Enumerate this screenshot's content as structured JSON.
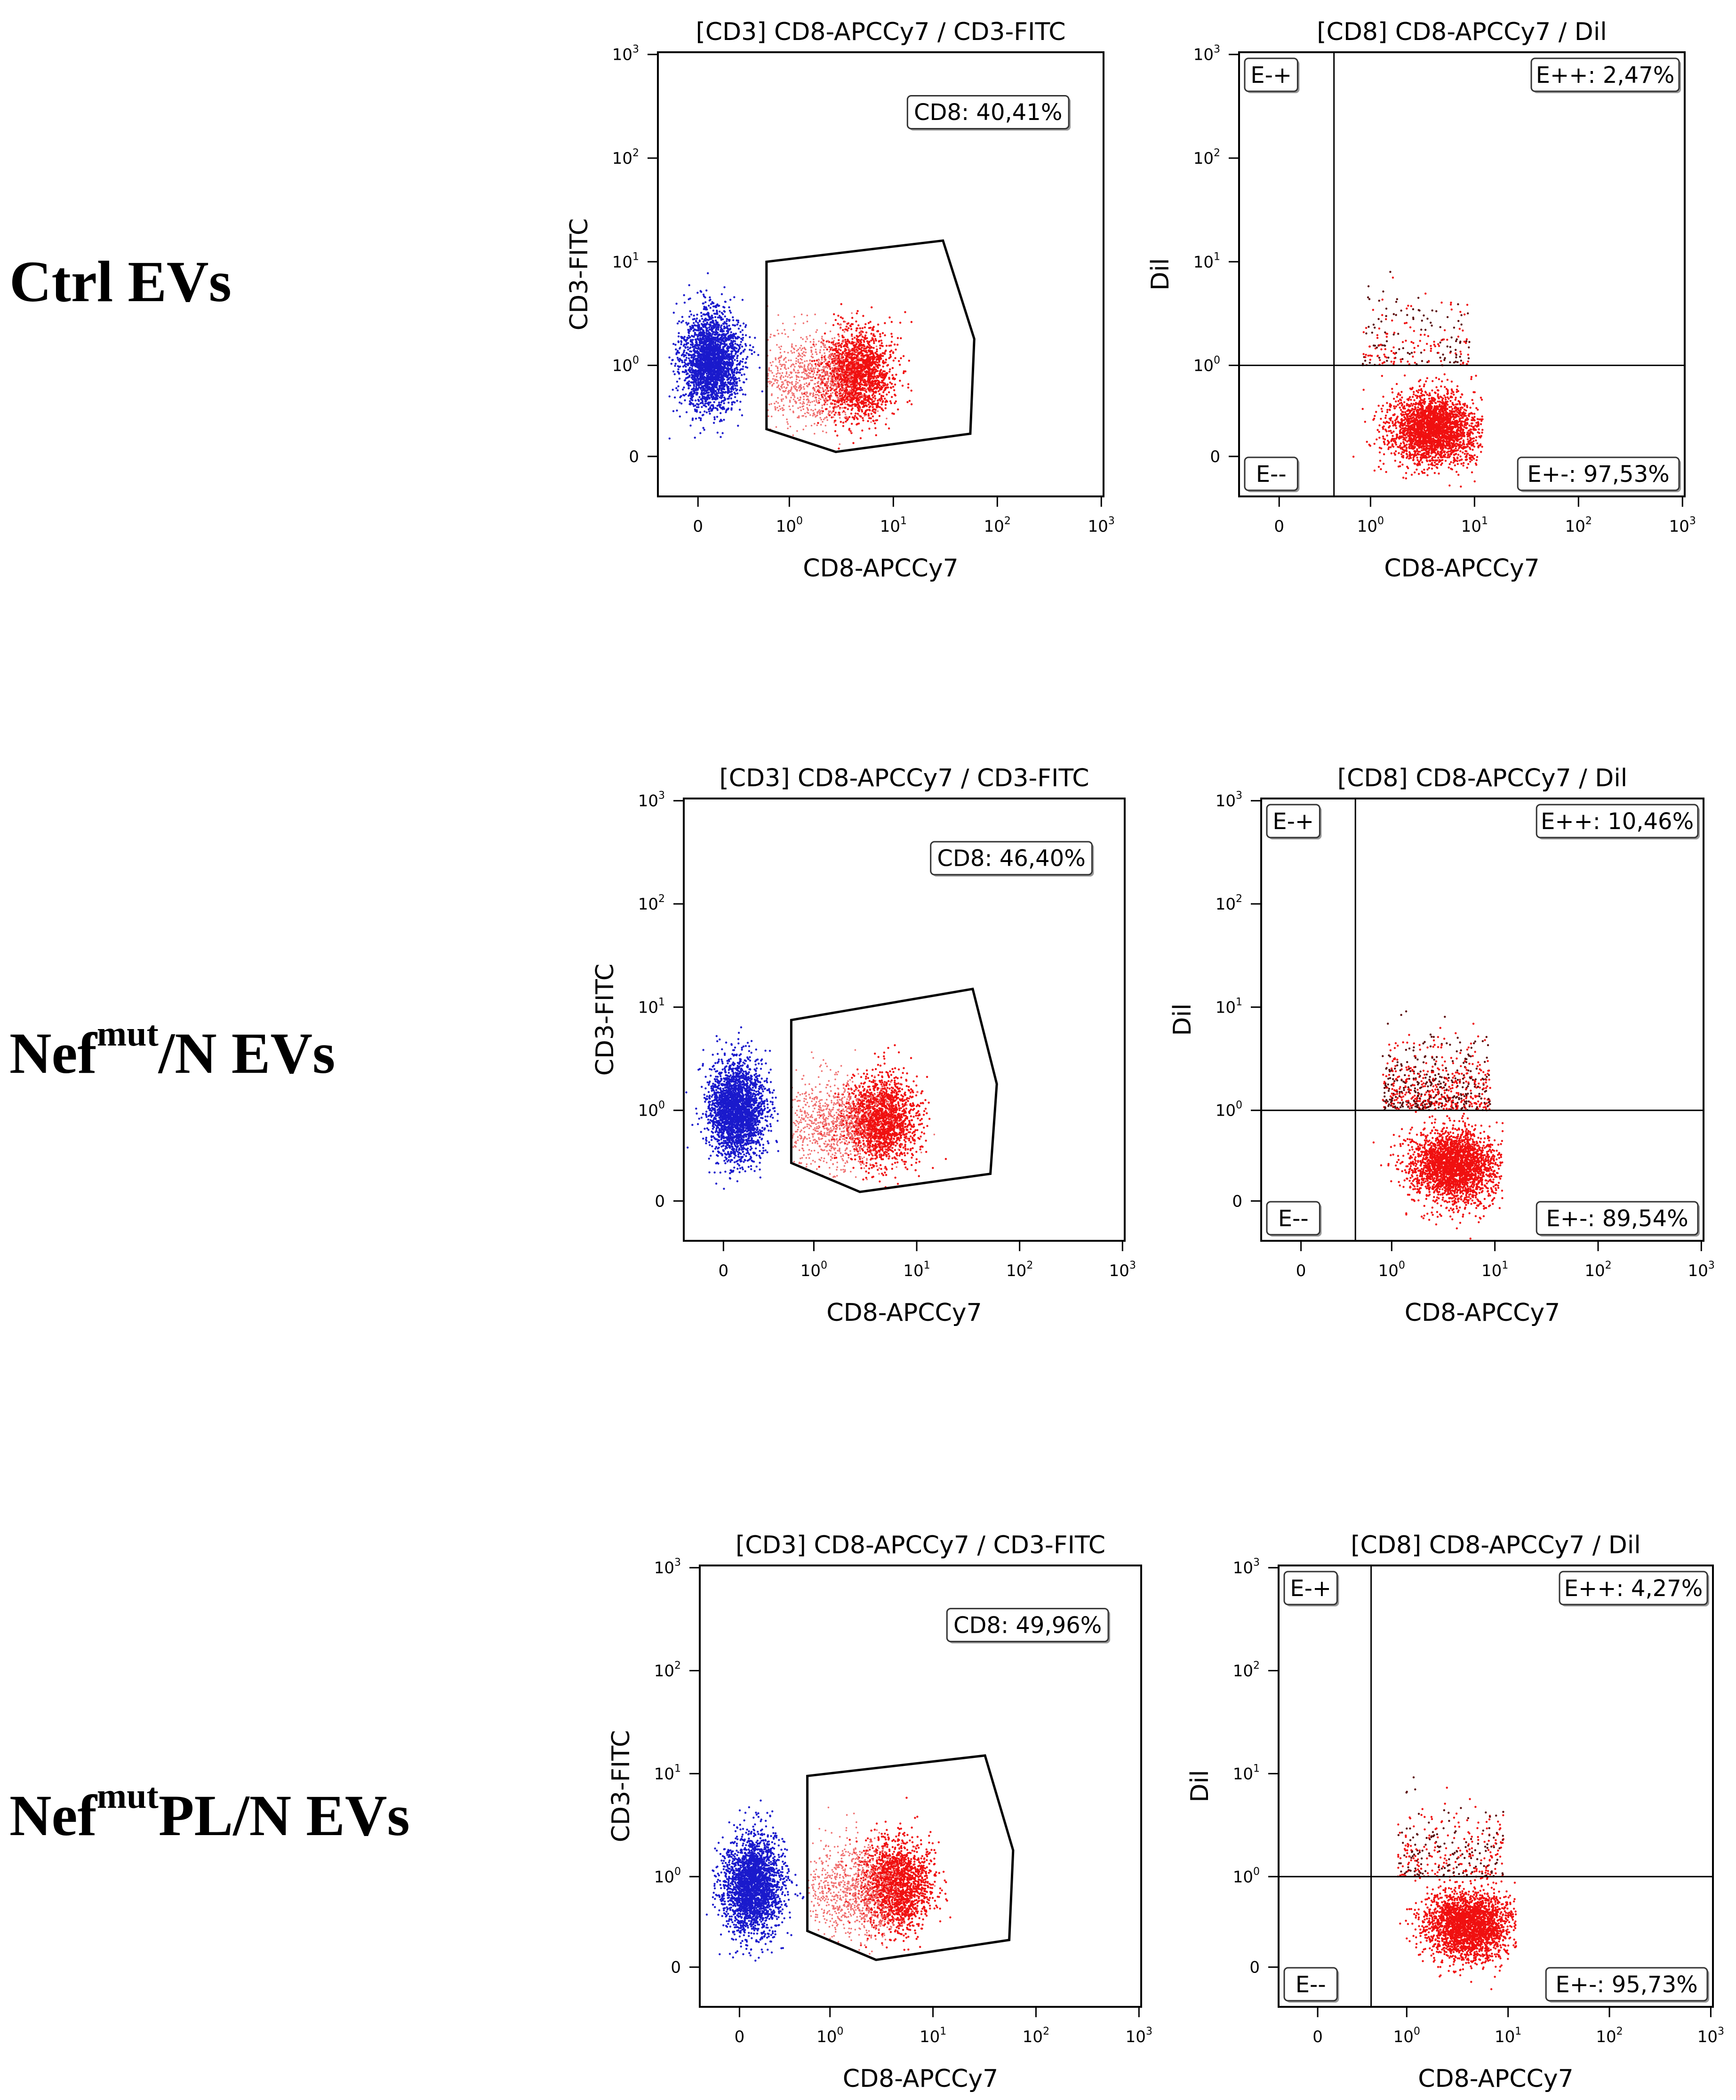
{
  "rows": [
    {
      "label": {
        "main": "Ctrl EVs",
        "sup": "",
        "tail": ""
      },
      "cd3_plot": {
        "title": "[CD3] CD8-APCCy7 / CD3-FITC",
        "xlabel": "CD8-APCCy7",
        "ylabel": "CD3-FITC",
        "gate_label": "CD8: 40,41%",
        "gate_polygon": [
          [
            0.75,
            10
          ],
          [
            30,
            16
          ],
          [
            60,
            1.8
          ],
          [
            55,
            0.25
          ],
          [
            2.8,
            0.05
          ],
          [
            0.75,
            0.3
          ]
        ]
      },
      "dil_plot": {
        "title": "[CD8] CD8-APCCy7 / Dil",
        "xlabel": "CD8-APCCy7",
        "ylabel": "Dil",
        "x_threshold": 0.6,
        "y_threshold": 1.0,
        "quadrants": {
          "ul": "E-+",
          "ur": "E++: 2,47%",
          "ll": "E--",
          "lr": "E+-: 97,53%"
        }
      }
    },
    {
      "label": {
        "main": "Nef",
        "sup": "mut",
        "tail": "/N EVs"
      },
      "cd3_plot": {
        "title": "[CD3] CD8-APCCy7 / CD3-FITC",
        "xlabel": "CD8-APCCy7",
        "ylabel": "CD3-FITC",
        "gate_label": "CD8: 46,40%",
        "gate_polygon": [
          [
            0.75,
            7.5
          ],
          [
            35,
            15
          ],
          [
            60,
            1.8
          ],
          [
            52,
            0.3
          ],
          [
            2.8,
            0.1
          ],
          [
            0.75,
            0.42
          ]
        ]
      },
      "dil_plot": {
        "title": "[CD8] CD8-APCCy7 / Dil",
        "xlabel": "CD8-APCCy7",
        "ylabel": "Dil",
        "x_threshold": 0.6,
        "y_threshold": 1.0,
        "quadrants": {
          "ul": "E-+",
          "ur": "E++: 10,46%",
          "ll": "E--",
          "lr": "E+-: 89,54%"
        }
      }
    },
    {
      "label": {
        "main": "Nef",
        "sup": "mut",
        "tail": "PL/N EVs"
      },
      "cd3_plot": {
        "title": "[CD3] CD8-APCCy7 / CD3-FITC",
        "xlabel": "CD8-APCCy7",
        "ylabel": "CD3-FITC",
        "gate_label": "CD8: 49,96%",
        "gate_polygon": [
          [
            0.75,
            9.5
          ],
          [
            32,
            15
          ],
          [
            60,
            1.8
          ],
          [
            55,
            0.3
          ],
          [
            2.8,
            0.08
          ],
          [
            0.75,
            0.4
          ]
        ]
      },
      "dil_plot": {
        "title": "[CD8] CD8-APCCy7 / Dil",
        "xlabel": "CD8-APCCy7",
        "ylabel": "Dil",
        "x_threshold": 0.6,
        "y_threshold": 1.0,
        "quadrants": {
          "ul": "E-+",
          "ur": "E++: 4,27%",
          "ll": "E--",
          "lr": "E+-: 95,73%"
        }
      }
    }
  ],
  "colors": {
    "cd8_negative": "#1a1acc",
    "cd8_positive": "#f01010",
    "dil_positive": "#5a0a0a",
    "axes": "#000000"
  },
  "chart_data": [
    {
      "type": "scatter",
      "title": "[CD3] CD8-APCCy7 / CD3-FITC",
      "xlabel": "CD8-APCCy7",
      "ylabel": "CD3-FITC",
      "xscale": "biexponential",
      "yscale": "biexponential",
      "xlim": [
        -0.3,
        1000
      ],
      "ylim": [
        -0.3,
        1000
      ],
      "x_ticks": [
        "0",
        "10^0",
        "10^1",
        "10^2",
        "10^3"
      ],
      "y_ticks": [
        "0",
        "10^0",
        "10^1",
        "10^2",
        "10^3"
      ],
      "gate": "CD8",
      "gate_percent": 40.41,
      "populations": [
        {
          "name": "CD8-",
          "x_center": 0.15,
          "y_center": 1.2
        },
        {
          "name": "CD8+",
          "x_center": 5,
          "y_center": 0.9
        }
      ]
    },
    {
      "type": "scatter",
      "title": "[CD8] CD8-APCCy7 / Dil",
      "xlabel": "CD8-APCCy7",
      "ylabel": "Dil",
      "xscale": "biexponential",
      "yscale": "biexponential",
      "xlim": [
        -0.3,
        1000
      ],
      "ylim": [
        -0.3,
        1000
      ],
      "x_ticks": [
        "0",
        "10^0",
        "10^1",
        "10^2",
        "10^3"
      ],
      "y_ticks": [
        "0",
        "10^0",
        "10^1",
        "10^2",
        "10^3"
      ],
      "quadrants": {
        "E-+": null,
        "E++": 2.47,
        "E--": null,
        "E+-": 97.53
      }
    },
    {
      "type": "scatter",
      "title": "[CD3] CD8-APCCy7 / CD3-FITC",
      "xlabel": "CD8-APCCy7",
      "ylabel": "CD3-FITC",
      "xscale": "biexponential",
      "yscale": "biexponential",
      "xlim": [
        -0.3,
        1000
      ],
      "ylim": [
        -0.3,
        1000
      ],
      "x_ticks": [
        "0",
        "10^0",
        "10^1",
        "10^2",
        "10^3"
      ],
      "y_ticks": [
        "0",
        "10^0",
        "10^1",
        "10^2",
        "10^3"
      ],
      "gate": "CD8",
      "gate_percent": 46.4,
      "populations": [
        {
          "name": "CD8-",
          "x_center": 0.15,
          "y_center": 1.0
        },
        {
          "name": "CD8+",
          "x_center": 4,
          "y_center": 0.8
        }
      ]
    },
    {
      "type": "scatter",
      "title": "[CD8] CD8-APCCy7 / Dil",
      "xlabel": "CD8-APCCy7",
      "ylabel": "Dil",
      "xscale": "biexponential",
      "yscale": "biexponential",
      "xlim": [
        -0.3,
        1000
      ],
      "ylim": [
        -0.3,
        1000
      ],
      "x_ticks": [
        "0",
        "10^0",
        "10^1",
        "10^2",
        "10^3"
      ],
      "y_ticks": [
        "0",
        "10^0",
        "10^1",
        "10^2",
        "10^3"
      ],
      "quadrants": {
        "E-+": null,
        "E++": 10.46,
        "E--": null,
        "E+-": 89.54
      }
    },
    {
      "type": "scatter",
      "title": "[CD3] CD8-APCCy7 / CD3-FITC",
      "xlabel": "CD8-APCCy7",
      "ylabel": "CD3-FITC",
      "xscale": "biexponential",
      "yscale": "biexponential",
      "xlim": [
        -0.3,
        1000
      ],
      "ylim": [
        -0.3,
        1000
      ],
      "x_ticks": [
        "0",
        "10^0",
        "10^1",
        "10^2",
        "10^3"
      ],
      "y_ticks": [
        "0",
        "10^0",
        "10^1",
        "10^2",
        "10^3"
      ],
      "gate": "CD8",
      "gate_percent": 49.96,
      "populations": [
        {
          "name": "CD8-",
          "x_center": 0.15,
          "y_center": 0.9
        },
        {
          "name": "CD8+",
          "x_center": 5,
          "y_center": 0.8
        }
      ]
    },
    {
      "type": "scatter",
      "title": "[CD8] CD8-APCCy7 / Dil",
      "xlabel": "CD8-APCCy7",
      "ylabel": "Dil",
      "xscale": "biexponential",
      "yscale": "biexponential",
      "xlim": [
        -0.3,
        1000
      ],
      "ylim": [
        -0.3,
        1000
      ],
      "x_ticks": [
        "0",
        "10^0",
        "10^1",
        "10^2",
        "10^3"
      ],
      "y_ticks": [
        "0",
        "10^0",
        "10^1",
        "10^2",
        "10^3"
      ],
      "quadrants": {
        "E-+": null,
        "E++": 4.27,
        "E--": null,
        "E+-": 95.73
      }
    }
  ]
}
